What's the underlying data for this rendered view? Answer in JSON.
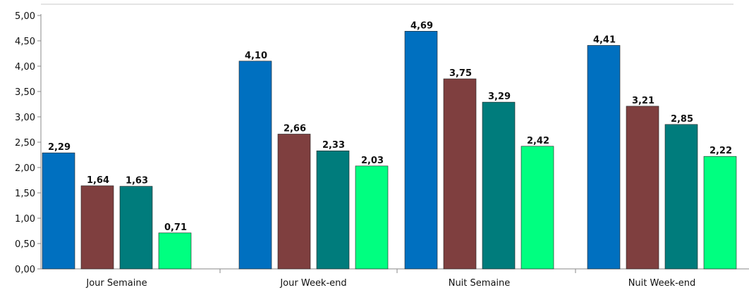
{
  "chart_data": {
    "type": "bar",
    "categories": [
      "Jour Semaine",
      "Jour Week-end",
      "Nuit Semaine",
      "Nuit Week-end"
    ],
    "series": [
      {
        "color": "#0070C0",
        "values": [
          2.29,
          4.1,
          4.69,
          4.41
        ],
        "labels": [
          "2,29",
          "4,10",
          "4,69",
          "4,41"
        ]
      },
      {
        "color": "#7F3F3F",
        "values": [
          1.64,
          2.66,
          3.75,
          3.21
        ],
        "labels": [
          "1,64",
          "2,66",
          "3,75",
          "3,21"
        ]
      },
      {
        "color": "#007C7C",
        "values": [
          1.63,
          2.33,
          3.29,
          2.85
        ],
        "labels": [
          "1,63",
          "2,33",
          "3,29",
          "2,85"
        ]
      },
      {
        "color": "#00FF80",
        "values": [
          0.71,
          2.03,
          2.42,
          2.22
        ],
        "labels": [
          "0,71",
          "2,03",
          "2,42",
          "2,22"
        ]
      }
    ],
    "yticks": [
      "0,00",
      "0,50",
      "1,00",
      "1,50",
      "2,00",
      "2,50",
      "3,00",
      "3,50",
      "4,00",
      "4,50",
      "5,00"
    ],
    "ylim": [
      0,
      5
    ],
    "grid": false,
    "legend": "none"
  }
}
